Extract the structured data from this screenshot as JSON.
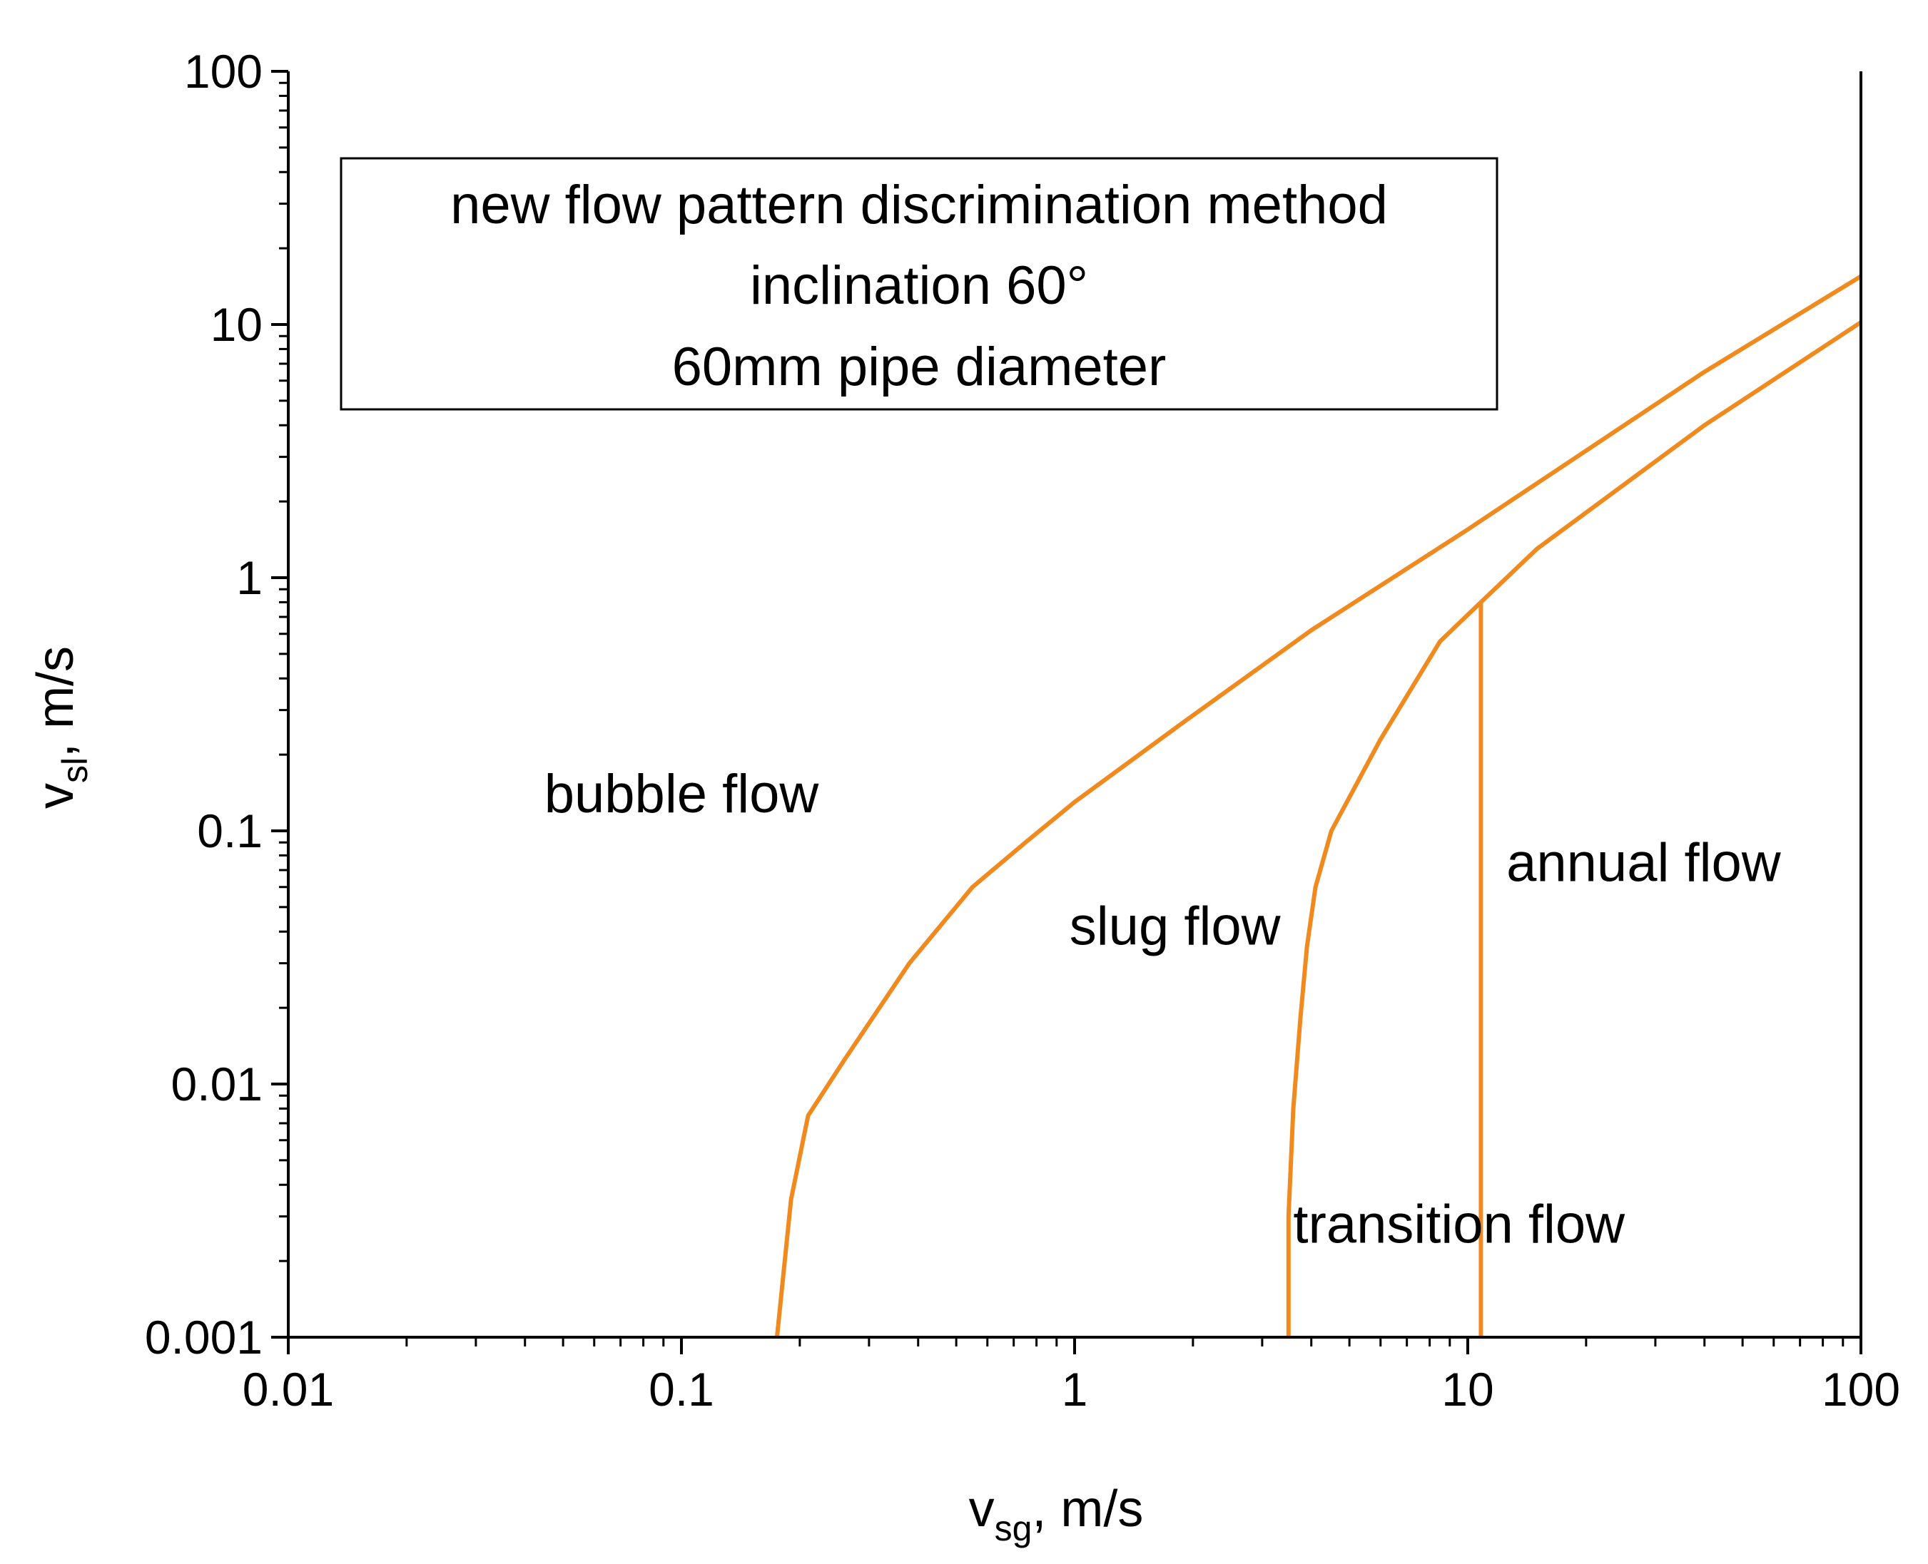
{
  "chart_data": {
    "type": "line",
    "xscale": "log",
    "yscale": "log",
    "xlim": [
      0.01,
      100
    ],
    "ylim": [
      0.001,
      100
    ],
    "xticks": [
      {
        "value": 0.01,
        "label": "0.01"
      },
      {
        "value": 0.1,
        "label": "0.1"
      },
      {
        "value": 1,
        "label": "1"
      },
      {
        "value": 10,
        "label": "10"
      },
      {
        "value": 100,
        "label": "100"
      }
    ],
    "yticks": [
      {
        "value": 0.001,
        "label": "0.001"
      },
      {
        "value": 0.01,
        "label": "0.01"
      },
      {
        "value": 0.1,
        "label": "0.1"
      },
      {
        "value": 1,
        "label": "1"
      },
      {
        "value": 10,
        "label": "10"
      },
      {
        "value": 100,
        "label": "100"
      }
    ],
    "xlabel": {
      "main": "v",
      "sub": "sg",
      "unit": ", m/s"
    },
    "ylabel": {
      "main": "v",
      "sub": "sl",
      "unit": ", m/s"
    },
    "legend_lines": [
      "new flow pattern discrimination method",
      "inclination 60°",
      "60mm pipe  diameter"
    ],
    "line_color": "#f08a1e",
    "series": [
      {
        "name": "bubble-slug boundary",
        "x": [
          0.175,
          0.19,
          0.21,
          0.26,
          0.38,
          0.55,
          0.75,
          1.0,
          1.9,
          4.0,
          10.0,
          40.0,
          100.0
        ],
        "y": [
          0.001,
          0.0035,
          0.0075,
          0.0125,
          0.03,
          0.06,
          0.09,
          0.13,
          0.27,
          0.62,
          1.55,
          6.5,
          15.5
        ]
      },
      {
        "name": "slug-transition boundary",
        "x": [
          3.5,
          3.5,
          3.6,
          3.75,
          3.9,
          4.1,
          4.5,
          6.0,
          8.5,
          10.8,
          15.0,
          40.0,
          100.0
        ],
        "y": [
          0.001,
          0.003,
          0.008,
          0.018,
          0.035,
          0.06,
          0.1,
          0.23,
          0.56,
          0.8,
          1.3,
          4.0,
          10.2
        ]
      },
      {
        "name": "transition-annular boundary",
        "x": [
          10.8,
          10.8
        ],
        "y": [
          0.001,
          0.8
        ]
      }
    ],
    "regions": [
      {
        "label": "bubble flow",
        "x": 0.1,
        "y": 0.14
      },
      {
        "label": "slug flow",
        "x": 1.8,
        "y": 0.042
      },
      {
        "label": "annual flow",
        "x": 28,
        "y": 0.075
      },
      {
        "label": "transition flow",
        "x": 9.5,
        "y": 0.0028
      }
    ]
  }
}
